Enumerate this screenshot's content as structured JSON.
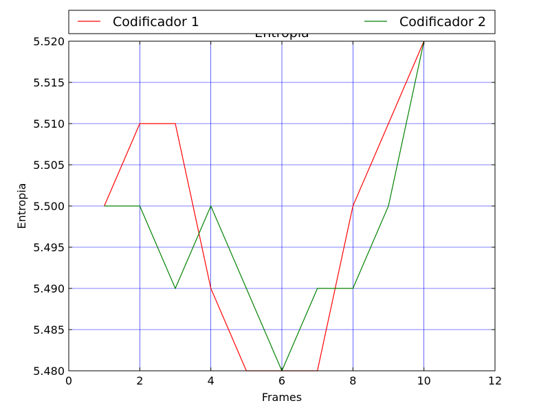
{
  "chart_data": {
    "type": "line",
    "title": "Entropia",
    "xlabel": "Frames",
    "ylabel": "Entropia",
    "xlim": [
      0,
      12
    ],
    "ylim": [
      5.48,
      5.52
    ],
    "xticks": [
      "0",
      "2",
      "4",
      "6",
      "8",
      "10",
      "12"
    ],
    "yticks": [
      "5.480",
      "5.485",
      "5.490",
      "5.495",
      "5.500",
      "5.505",
      "5.510",
      "5.515",
      "5.520"
    ],
    "grid": true,
    "grid_color": "#0000ff",
    "legend_position": "top, above plot",
    "series": [
      {
        "name": "Codificador 1",
        "color": "#ff0000",
        "x": [
          1,
          2,
          3,
          4,
          5,
          6,
          7,
          8,
          9,
          10
        ],
        "y": [
          5.5,
          5.51,
          5.51,
          5.49,
          5.48,
          5.48,
          5.48,
          5.5,
          5.51,
          5.52
        ]
      },
      {
        "name": "Codificador 2",
        "color": "#008000",
        "x": [
          1,
          2,
          3,
          4,
          5,
          6,
          7,
          8,
          9,
          10
        ],
        "y": [
          5.5,
          5.5,
          5.49,
          5.5,
          5.49,
          5.48,
          5.49,
          5.49,
          5.5,
          5.52
        ]
      }
    ]
  }
}
